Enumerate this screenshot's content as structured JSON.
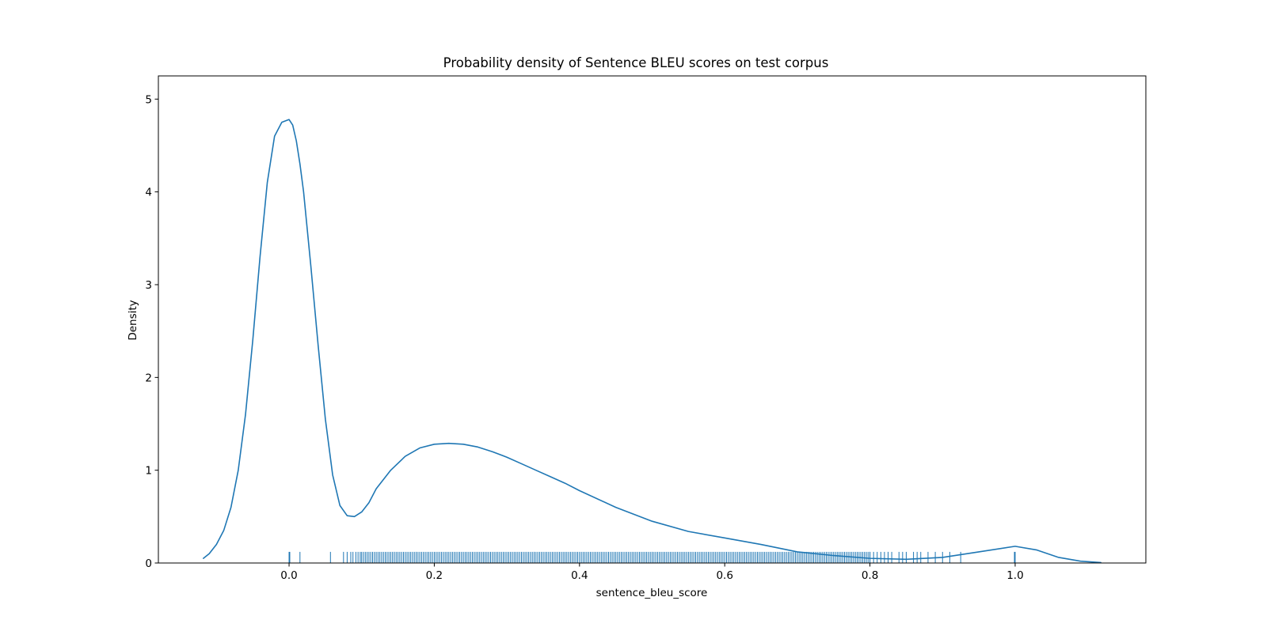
{
  "chart_data": {
    "type": "line",
    "title": "Probability density of Sentence BLEU scores on test corpus",
    "xlabel": "sentence_bleu_score",
    "ylabel": "Density",
    "xlim": [
      -0.18,
      1.18
    ],
    "ylim": [
      0,
      5.25
    ],
    "x_ticks": [
      "0.0",
      "0.2",
      "0.4",
      "0.6",
      "0.8",
      "1.0"
    ],
    "x_tick_values": [
      0.0,
      0.2,
      0.4,
      0.6,
      0.8,
      1.0
    ],
    "y_ticks": [
      "0",
      "1",
      "2",
      "3",
      "4",
      "5"
    ],
    "y_tick_values": [
      0,
      1,
      2,
      3,
      4,
      5
    ],
    "grid": false,
    "line_color": "#1f77b4",
    "series": [
      {
        "kind": "kde",
        "x": [
          -0.118,
          -0.11,
          -0.1,
          -0.09,
          -0.08,
          -0.07,
          -0.06,
          -0.05,
          -0.04,
          -0.03,
          -0.02,
          -0.01,
          0.0,
          0.005,
          0.01,
          0.015,
          0.02,
          0.03,
          0.04,
          0.05,
          0.06,
          0.07,
          0.08,
          0.09,
          0.1,
          0.11,
          0.12,
          0.14,
          0.16,
          0.18,
          0.2,
          0.22,
          0.24,
          0.26,
          0.28,
          0.3,
          0.32,
          0.34,
          0.36,
          0.38,
          0.4,
          0.45,
          0.5,
          0.55,
          0.6,
          0.65,
          0.7,
          0.75,
          0.8,
          0.85,
          0.9,
          0.95,
          1.0,
          1.03,
          1.06,
          1.09,
          1.118
        ],
        "y": [
          0.05,
          0.1,
          0.2,
          0.35,
          0.6,
          1.0,
          1.6,
          2.4,
          3.3,
          4.1,
          4.6,
          4.75,
          4.78,
          4.72,
          4.55,
          4.3,
          4.0,
          3.2,
          2.35,
          1.55,
          0.95,
          0.62,
          0.51,
          0.5,
          0.55,
          0.65,
          0.8,
          1.0,
          1.15,
          1.24,
          1.28,
          1.29,
          1.28,
          1.25,
          1.2,
          1.14,
          1.07,
          1.0,
          0.93,
          0.86,
          0.78,
          0.6,
          0.45,
          0.34,
          0.27,
          0.2,
          0.12,
          0.08,
          0.05,
          0.04,
          0.06,
          0.12,
          0.18,
          0.14,
          0.06,
          0.02,
          0.005
        ]
      },
      {
        "kind": "rug",
        "height": 0.12,
        "ranges": [
          [
            0.1,
            0.8,
            0.0025
          ]
        ],
        "points": [
          0.0,
          0.001,
          0.015,
          0.057,
          0.075,
          0.08,
          0.085,
          0.088,
          0.092,
          0.095,
          0.098,
          0.8,
          0.805,
          0.81,
          0.815,
          0.82,
          0.825,
          0.83,
          0.84,
          0.845,
          0.85,
          0.86,
          0.865,
          0.87,
          0.88,
          0.89,
          0.9,
          0.91,
          0.925,
          0.999,
          1.0
        ]
      }
    ]
  }
}
